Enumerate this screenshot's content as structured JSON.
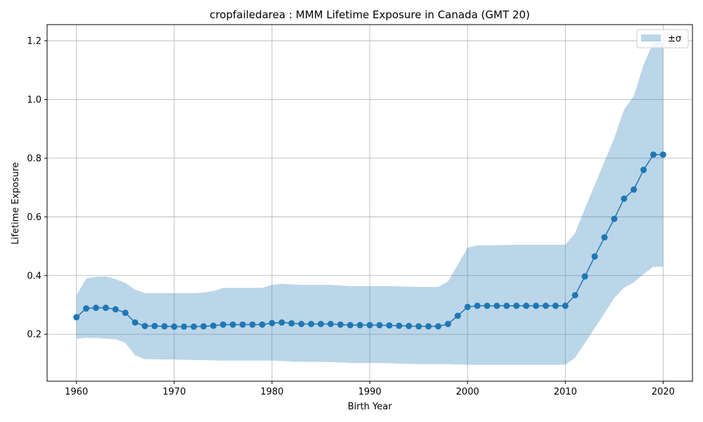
{
  "chart_data": {
    "type": "line",
    "title": "cropfailedarea : MMM Lifetime Exposure in Canada (GMT 20)",
    "xlabel": "Birth Year",
    "ylabel": "Lifetime Exposure",
    "xlim": [
      1957,
      2023
    ],
    "ylim": [
      0.04,
      1.255
    ],
    "xticks": [
      1960,
      1970,
      1980,
      1990,
      2000,
      2010,
      2020
    ],
    "yticks": [
      0.2,
      0.4,
      0.6,
      0.8,
      1.0,
      1.2
    ],
    "yticklabels": [
      "0.2",
      "0.4",
      "0.6",
      "0.8",
      "1.0",
      "1.2"
    ],
    "grid": true,
    "legend": {
      "placement": "top-right",
      "label": "±σ"
    },
    "colors": {
      "line": "#1f77b4",
      "band": "#1f77b4",
      "grid": "#b0b0b0"
    },
    "x": [
      1960,
      1961,
      1962,
      1963,
      1964,
      1965,
      1966,
      1967,
      1968,
      1969,
      1970,
      1971,
      1972,
      1973,
      1974,
      1975,
      1976,
      1977,
      1978,
      1979,
      1980,
      1981,
      1982,
      1983,
      1984,
      1985,
      1986,
      1987,
      1988,
      1989,
      1990,
      1991,
      1992,
      1993,
      1994,
      1995,
      1996,
      1997,
      1998,
      1999,
      2000,
      2001,
      2002,
      2003,
      2004,
      2005,
      2006,
      2007,
      2008,
      2009,
      2010,
      2011,
      2012,
      2013,
      2014,
      2015,
      2016,
      2017,
      2018,
      2019,
      2020
    ],
    "series": [
      {
        "values": [
          0.258,
          0.288,
          0.29,
          0.29,
          0.285,
          0.273,
          0.24,
          0.228,
          0.228,
          0.227,
          0.226,
          0.226,
          0.226,
          0.227,
          0.229,
          0.233,
          0.233,
          0.233,
          0.233,
          0.233,
          0.238,
          0.24,
          0.237,
          0.235,
          0.235,
          0.235,
          0.235,
          0.233,
          0.231,
          0.231,
          0.231,
          0.231,
          0.23,
          0.229,
          0.228,
          0.227,
          0.227,
          0.227,
          0.235,
          0.263,
          0.293,
          0.297,
          0.297,
          0.297,
          0.297,
          0.297,
          0.297,
          0.297,
          0.297,
          0.297,
          0.297,
          0.333,
          0.397,
          0.465,
          0.53,
          0.593,
          0.662,
          0.693,
          0.76,
          0.812,
          0.812
        ]
      }
    ],
    "band": {
      "upper": [
        0.332,
        0.39,
        0.396,
        0.397,
        0.388,
        0.375,
        0.352,
        0.34,
        0.34,
        0.34,
        0.34,
        0.34,
        0.34,
        0.342,
        0.347,
        0.358,
        0.358,
        0.358,
        0.358,
        0.358,
        0.368,
        0.372,
        0.37,
        0.368,
        0.368,
        0.368,
        0.368,
        0.366,
        0.364,
        0.364,
        0.364,
        0.364,
        0.364,
        0.363,
        0.362,
        0.361,
        0.361,
        0.361,
        0.38,
        0.437,
        0.495,
        0.503,
        0.503,
        0.503,
        0.504,
        0.505,
        0.505,
        0.505,
        0.505,
        0.505,
        0.505,
        0.545,
        0.628,
        0.708,
        0.788,
        0.868,
        0.965,
        1.012,
        1.118,
        1.195,
        1.195
      ],
      "lower": [
        0.185,
        0.188,
        0.187,
        0.185,
        0.183,
        0.171,
        0.128,
        0.115,
        0.115,
        0.114,
        0.114,
        0.113,
        0.112,
        0.112,
        0.111,
        0.11,
        0.11,
        0.11,
        0.11,
        0.11,
        0.11,
        0.109,
        0.107,
        0.106,
        0.106,
        0.106,
        0.105,
        0.104,
        0.102,
        0.102,
        0.102,
        0.102,
        0.101,
        0.1,
        0.099,
        0.098,
        0.098,
        0.098,
        0.098,
        0.097,
        0.096,
        0.096,
        0.096,
        0.096,
        0.096,
        0.096,
        0.096,
        0.096,
        0.096,
        0.096,
        0.096,
        0.12,
        0.17,
        0.22,
        0.272,
        0.323,
        0.358,
        0.377,
        0.405,
        0.43,
        0.43
      ]
    }
  }
}
